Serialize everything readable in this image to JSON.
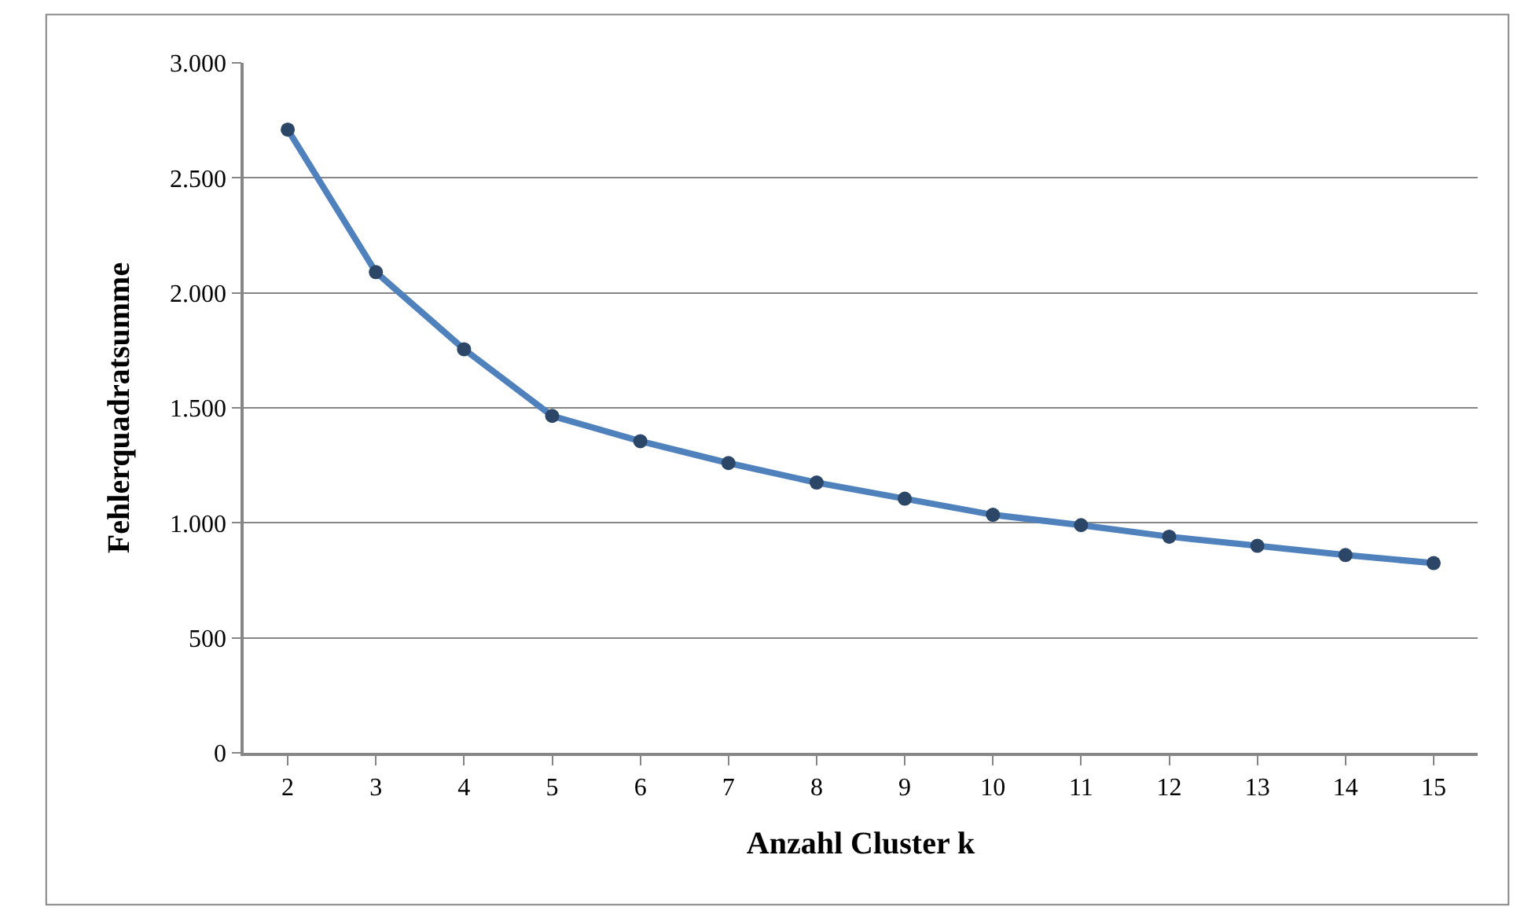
{
  "chart_data": {
    "type": "line",
    "xlabel": "Anzahl Cluster k",
    "ylabel": "Fehlerquadratsumme",
    "categories": [
      "2",
      "3",
      "4",
      "5",
      "6",
      "7",
      "8",
      "9",
      "10",
      "11",
      "12",
      "13",
      "14",
      "15"
    ],
    "series": [
      {
        "color": "#4f81bd",
        "values": [
          2710,
          2090,
          1755,
          1465,
          1355,
          1260,
          1175,
          1105,
          1035,
          990,
          940,
          900,
          860,
          825
        ]
      }
    ],
    "ylim": [
      0,
      3000
    ],
    "yticks": [
      0,
      500,
      {
        "value": 1000,
        "label": "1.000"
      },
      {
        "value": 1500,
        "label": "1.500"
      },
      {
        "value": 2000,
        "label": "2.000"
      },
      {
        "value": 2500,
        "label": "2.500"
      },
      {
        "value": 3000,
        "label": "3.000"
      }
    ],
    "grid": "y",
    "marker": "circle",
    "line_style": "solid"
  }
}
